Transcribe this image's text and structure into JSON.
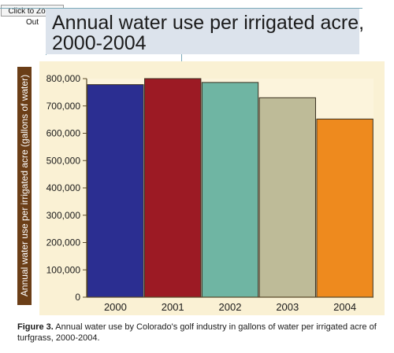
{
  "toolbar": {
    "zoom_out_label": "Click to Zoom Out"
  },
  "chart_data": {
    "type": "bar",
    "title": "Annual water use per irrigated acre, 2000-2004",
    "ylabel": "Annual water use per irrigated acre (gallons of water)",
    "xlabel": "",
    "categories": [
      "2000",
      "2001",
      "2002",
      "2003",
      "2004"
    ],
    "values": [
      778000,
      800000,
      786000,
      730000,
      652000
    ],
    "colors": [
      "#2b2e91",
      "#9c1a24",
      "#6fb5a3",
      "#bebb98",
      "#ee8a1e"
    ],
    "ylim": [
      0,
      800000
    ],
    "yticks": [
      "0",
      "100,000",
      "200,000",
      "300,000",
      "400,000",
      "500,000",
      "600,000",
      "700,000",
      "800,000"
    ],
    "grid": false,
    "legend": "none"
  },
  "caption": {
    "label": "Figure 3.",
    "text": " Annual water use by Colorado's golf industry in gallons of water per irrigated acre of turfgrass, 2000-2004."
  }
}
